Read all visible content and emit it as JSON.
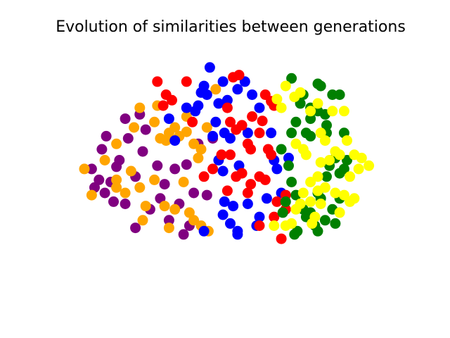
{
  "chart_data": {
    "type": "scatter",
    "title": "Evolution of similarities between generations",
    "xlabel": "",
    "ylabel": "",
    "axes_visible": false,
    "grid": false,
    "legend": "none",
    "xlim": [
      -1,
      1
    ],
    "ylim": [
      -1,
      1
    ],
    "series": [
      {
        "color": "#800080",
        "points": [
          [
            -0.72,
            0.48
          ],
          [
            -0.78,
            0.04
          ],
          [
            -0.85,
            0.32
          ],
          [
            -0.88,
            0.2
          ],
          [
            -0.95,
            0.02
          ],
          [
            -0.8,
            -0.28
          ],
          [
            -0.86,
            -0.2
          ],
          [
            -0.9,
            -0.08
          ],
          [
            -0.72,
            -0.3
          ],
          [
            -0.65,
            -0.05
          ],
          [
            -0.6,
            0.18
          ],
          [
            -0.55,
            -0.35
          ],
          [
            -0.5,
            0.05
          ],
          [
            -0.45,
            -0.12
          ],
          [
            -0.42,
            -0.45
          ],
          [
            -0.38,
            0.02
          ],
          [
            -0.35,
            -0.3
          ],
          [
            -0.3,
            0.06
          ],
          [
            -0.28,
            -0.5
          ],
          [
            -0.25,
            -0.2
          ],
          [
            -0.22,
            0.25
          ],
          [
            -0.65,
            -0.52
          ],
          [
            -0.7,
            0.3
          ],
          [
            -0.82,
            -0.1
          ],
          [
            -0.93,
            -0.15
          ],
          [
            -0.58,
            0.38
          ],
          [
            -0.48,
            -0.25
          ],
          [
            -0.32,
            -0.58
          ],
          [
            -0.16,
            -0.22
          ],
          [
            -0.12,
            0.3
          ],
          [
            -0.76,
            0.1
          ],
          [
            -0.62,
            0.52
          ]
        ]
      },
      {
        "color": "#ffa500",
        "points": [
          [
            -0.62,
            0.58
          ],
          [
            -0.52,
            0.45
          ],
          [
            -0.48,
            0.3
          ],
          [
            -0.44,
            0.28
          ],
          [
            -0.38,
            0.4
          ],
          [
            -0.35,
            0.32
          ],
          [
            -0.3,
            0.36
          ],
          [
            -0.25,
            0.25
          ],
          [
            -0.22,
            0.12
          ],
          [
            -0.16,
            0.4
          ],
          [
            -0.78,
            0.25
          ],
          [
            -0.86,
            0.1
          ],
          [
            -1.0,
            0.02
          ],
          [
            -0.95,
            -0.22
          ],
          [
            -0.78,
            -0.08
          ],
          [
            -0.72,
            -0.2
          ],
          [
            -0.68,
            0.0
          ],
          [
            -0.62,
            -0.15
          ],
          [
            -0.58,
            -0.32
          ],
          [
            -0.52,
            -0.08
          ],
          [
            -0.45,
            -0.32
          ],
          [
            -0.38,
            -0.35
          ],
          [
            -0.32,
            -0.1
          ],
          [
            -0.28,
            -0.38
          ],
          [
            -0.25,
            -0.45
          ],
          [
            -0.2,
            -0.5
          ],
          [
            -0.15,
            -0.55
          ],
          [
            -0.42,
            -0.52
          ],
          [
            -0.6,
            -0.45
          ],
          [
            -0.66,
            0.4
          ],
          [
            -0.1,
            0.75
          ],
          [
            -0.3,
            0.5
          ],
          [
            -0.78,
            -0.15
          ],
          [
            -0.42,
            0.35
          ],
          [
            -0.5,
            0.6
          ],
          [
            -0.2,
            0.2
          ]
        ]
      },
      {
        "color": "#0000ff",
        "points": [
          [
            -0.14,
            0.95
          ],
          [
            -0.18,
            0.78
          ],
          [
            -0.16,
            0.7
          ],
          [
            -0.2,
            0.72
          ],
          [
            -0.05,
            0.82
          ],
          [
            -0.02,
            0.65
          ],
          [
            0.05,
            0.75
          ],
          [
            0.1,
            0.82
          ],
          [
            0.15,
            0.7
          ],
          [
            -0.3,
            0.58
          ],
          [
            -0.22,
            0.6
          ],
          [
            -0.24,
            0.55
          ],
          [
            -0.08,
            0.62
          ],
          [
            -0.1,
            0.45
          ],
          [
            -0.04,
            0.35
          ],
          [
            0.0,
            0.3
          ],
          [
            -0.08,
            0.1
          ],
          [
            -0.05,
            0.0
          ],
          [
            0.06,
            0.05
          ],
          [
            0.2,
            0.58
          ],
          [
            0.28,
            0.35
          ],
          [
            0.3,
            0.1
          ],
          [
            0.25,
            -0.25
          ],
          [
            0.12,
            -0.3
          ],
          [
            0.02,
            -0.32
          ],
          [
            0.0,
            -0.48
          ],
          [
            0.05,
            -0.55
          ],
          [
            -0.04,
            -0.28
          ],
          [
            -0.05,
            -0.4
          ],
          [
            -0.18,
            -0.55
          ],
          [
            0.2,
            -0.42
          ],
          [
            0.18,
            -0.5
          ],
          [
            0.4,
            0.12
          ],
          [
            0.32,
            0.02
          ],
          [
            0.35,
            -0.2
          ],
          [
            -0.38,
            0.28
          ],
          [
            -0.42,
            0.48
          ],
          [
            -0.12,
            0.32
          ],
          [
            0.05,
            -0.58
          ],
          [
            0.12,
            0.35
          ]
        ]
      },
      {
        "color": "#ff0000",
        "points": [
          [
            -0.5,
            0.82
          ],
          [
            -0.3,
            0.82
          ],
          [
            -0.44,
            0.7
          ],
          [
            -0.4,
            0.65
          ],
          [
            -0.46,
            0.6
          ],
          [
            0.02,
            0.86
          ],
          [
            0.06,
            0.88
          ],
          [
            -0.02,
            0.58
          ],
          [
            0.0,
            0.45
          ],
          [
            0.04,
            0.38
          ],
          [
            0.08,
            0.42
          ],
          [
            0.15,
            0.5
          ],
          [
            0.22,
            0.46
          ],
          [
            0.24,
            0.7
          ],
          [
            0.28,
            0.64
          ],
          [
            0.3,
            0.6
          ],
          [
            -0.06,
            0.15
          ],
          [
            0.0,
            0.15
          ],
          [
            0.12,
            0.25
          ],
          [
            0.14,
            0.2
          ],
          [
            0.26,
            0.2
          ],
          [
            0.28,
            0.15
          ],
          [
            -0.12,
            0.02
          ],
          [
            -0.18,
            -0.05
          ],
          [
            0.04,
            -0.05
          ],
          [
            0.08,
            -0.02
          ],
          [
            0.14,
            -0.12
          ],
          [
            0.12,
            -0.2
          ],
          [
            0.2,
            -0.05
          ],
          [
            0.24,
            -0.08
          ],
          [
            -0.02,
            -0.18
          ],
          [
            0.32,
            -0.28
          ],
          [
            0.3,
            -0.42
          ],
          [
            0.2,
            -0.5
          ],
          [
            0.35,
            -0.62
          ],
          [
            0.38,
            -0.35
          ],
          [
            -0.26,
            0.45
          ],
          [
            0.38,
            -0.22
          ],
          [
            0.2,
            0.35
          ]
        ]
      },
      {
        "color": "#008000",
        "points": [
          [
            0.42,
            0.85
          ],
          [
            0.48,
            0.62
          ],
          [
            0.5,
            0.7
          ],
          [
            0.55,
            0.58
          ],
          [
            0.6,
            0.8
          ],
          [
            0.62,
            0.78
          ],
          [
            0.7,
            0.7
          ],
          [
            0.75,
            0.7
          ],
          [
            0.6,
            0.55
          ],
          [
            0.65,
            0.52
          ],
          [
            0.45,
            0.45
          ],
          [
            0.42,
            0.35
          ],
          [
            0.52,
            0.35
          ],
          [
            0.55,
            0.32
          ],
          [
            0.66,
            0.35
          ],
          [
            0.78,
            0.35
          ],
          [
            0.35,
            0.2
          ],
          [
            0.4,
            0.05
          ],
          [
            0.42,
            -0.1
          ],
          [
            0.45,
            -0.22
          ],
          [
            0.38,
            -0.28
          ],
          [
            0.36,
            -0.38
          ],
          [
            0.5,
            -0.35
          ],
          [
            0.55,
            -0.38
          ],
          [
            0.52,
            -0.42
          ],
          [
            0.58,
            -0.5
          ],
          [
            0.6,
            -0.55
          ],
          [
            0.65,
            -0.45
          ],
          [
            0.68,
            0.05
          ],
          [
            0.72,
            0.12
          ],
          [
            0.75,
            -0.02
          ],
          [
            0.78,
            0.02
          ],
          [
            0.8,
            0.1
          ],
          [
            0.66,
            -0.05
          ],
          [
            0.6,
            -0.2
          ],
          [
            0.62,
            -0.25
          ],
          [
            0.7,
            -0.35
          ],
          [
            0.75,
            -0.25
          ],
          [
            0.72,
            -0.48
          ],
          [
            0.46,
            -0.55
          ],
          [
            0.44,
            -0.58
          ],
          [
            0.55,
            0.48
          ],
          [
            0.66,
            0.42
          ]
        ]
      },
      {
        "color": "#ffff00",
        "points": [
          [
            0.38,
            0.78
          ],
          [
            0.48,
            0.72
          ],
          [
            0.44,
            0.68
          ],
          [
            0.32,
            0.66
          ],
          [
            0.35,
            0.58
          ],
          [
            0.55,
            0.55
          ],
          [
            0.6,
            0.62
          ],
          [
            0.7,
            0.55
          ],
          [
            0.78,
            0.55
          ],
          [
            0.62,
            0.35
          ],
          [
            0.65,
            0.28
          ],
          [
            0.72,
            0.18
          ],
          [
            0.8,
            0.28
          ],
          [
            0.85,
            0.15
          ],
          [
            0.9,
            0.12
          ],
          [
            0.95,
            0.05
          ],
          [
            0.88,
            0.02
          ],
          [
            0.82,
            -0.05
          ],
          [
            0.75,
            0.15
          ],
          [
            0.68,
            0.1
          ],
          [
            0.62,
            0.08
          ],
          [
            0.6,
            -0.05
          ],
          [
            0.55,
            -0.1
          ],
          [
            0.5,
            -0.2
          ],
          [
            0.55,
            -0.28
          ],
          [
            0.6,
            -0.18
          ],
          [
            0.65,
            -0.15
          ],
          [
            0.72,
            -0.2
          ],
          [
            0.78,
            -0.22
          ],
          [
            0.82,
            -0.28
          ],
          [
            0.85,
            -0.25
          ],
          [
            0.75,
            -0.38
          ],
          [
            0.62,
            -0.3
          ],
          [
            0.58,
            -0.42
          ],
          [
            0.56,
            -0.48
          ],
          [
            0.45,
            -0.35
          ],
          [
            0.48,
            -0.3
          ],
          [
            0.42,
            -0.48
          ],
          [
            0.38,
            -0.5
          ],
          [
            0.3,
            -0.5
          ],
          [
            0.52,
            0.15
          ],
          [
            0.5,
            0.2
          ],
          [
            0.45,
            0.25
          ]
        ]
      }
    ]
  }
}
